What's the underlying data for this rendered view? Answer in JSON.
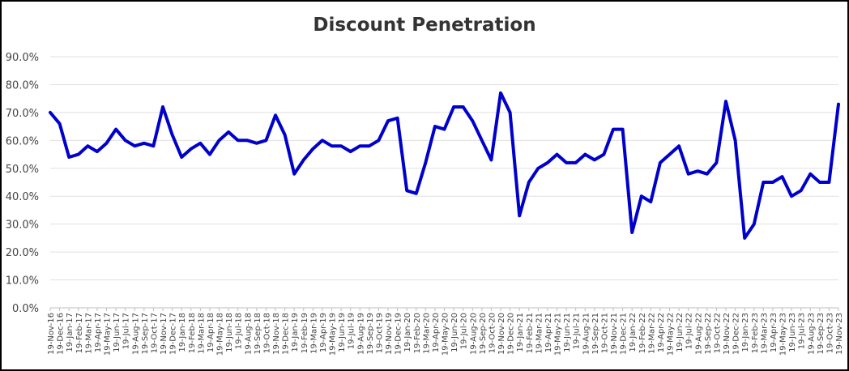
{
  "chart_data": {
    "type": "line",
    "title": "Discount Penetration",
    "xlabel": "",
    "ylabel": "",
    "ylim": [
      0,
      90
    ],
    "y_ticks": [
      "0.0%",
      "10.0%",
      "20.0%",
      "30.0%",
      "40.0%",
      "50.0%",
      "60.0%",
      "70.0%",
      "80.0%",
      "90.0%"
    ],
    "grid": true,
    "legend": null,
    "line_color": "#0000CC",
    "categories": [
      "19-Nov-16",
      "19-Dec-16",
      "19-Jan-17",
      "19-Feb-17",
      "19-Mar-17",
      "19-Apr-17",
      "19-May-17",
      "19-Jun-17",
      "19-Jul-17",
      "19-Aug-17",
      "19-Sep-17",
      "19-Oct-17",
      "19-Nov-17",
      "19-Dec-17",
      "19-Jan-18",
      "19-Feb-18",
      "19-Mar-18",
      "19-Apr-18",
      "19-May-18",
      "19-Jun-18",
      "19-Jul-18",
      "19-Aug-18",
      "19-Sep-18",
      "19-Oct-18",
      "19-Nov-18",
      "19-Dec-18",
      "19-Jan-19",
      "19-Feb-19",
      "19-Mar-19",
      "19-Apr-19",
      "19-May-19",
      "19-Jun-19",
      "19-Jul-19",
      "19-Aug-19",
      "19-Sep-19",
      "19-Oct-19",
      "19-Nov-19",
      "19-Dec-19",
      "19-Jan-20",
      "19-Feb-20",
      "19-Mar-20",
      "19-Apr-20",
      "19-May-20",
      "19-Jun-20",
      "19-Jul-20",
      "19-Aug-20",
      "19-Sep-20",
      "19-Oct-20",
      "19-Nov-20",
      "19-Dec-20",
      "19-Jan-21",
      "19-Feb-21",
      "19-Mar-21",
      "19-Apr-21",
      "19-May-21",
      "19-Jun-21",
      "19-Jul-21",
      "19-Aug-21",
      "19-Sep-21",
      "19-Oct-21",
      "19-Nov-21",
      "19-Dec-21",
      "19-Jan-22",
      "19-Feb-22",
      "19-Mar-22",
      "19-Apr-22",
      "19-May-22",
      "19-Jun-22",
      "19-Jul-22",
      "19-Aug-22",
      "19-Sep-22",
      "19-Oct-22",
      "19-Nov-22",
      "19-Dec-22",
      "19-Jan-23",
      "19-Feb-23",
      "19-Mar-23",
      "19-Apr-23",
      "19-May-23",
      "19-Jun-23",
      "19-Jul-23",
      "19-Aug-23",
      "19-Sep-23",
      "19-Oct-23",
      "19-Nov-23"
    ],
    "series": [
      {
        "name": "Discount Penetration",
        "values": [
          70,
          66,
          54,
          55,
          58,
          56,
          59,
          64,
          60,
          58,
          59,
          58,
          72,
          62,
          54,
          57,
          59,
          55,
          60,
          63,
          60,
          60,
          59,
          60,
          69,
          62,
          48,
          53,
          57,
          60,
          58,
          58,
          56,
          58,
          58,
          60,
          67,
          68,
          42,
          41,
          52,
          65,
          64,
          72,
          72,
          67,
          60,
          53,
          77,
          70,
          33,
          45,
          50,
          52,
          55,
          52,
          52,
          55,
          53,
          55,
          64,
          64,
          27,
          40,
          38,
          52,
          55,
          58,
          48,
          49,
          48,
          52,
          74,
          60,
          25,
          30,
          45,
          45,
          47,
          40,
          42,
          48,
          45,
          45,
          73
        ]
      }
    ]
  }
}
